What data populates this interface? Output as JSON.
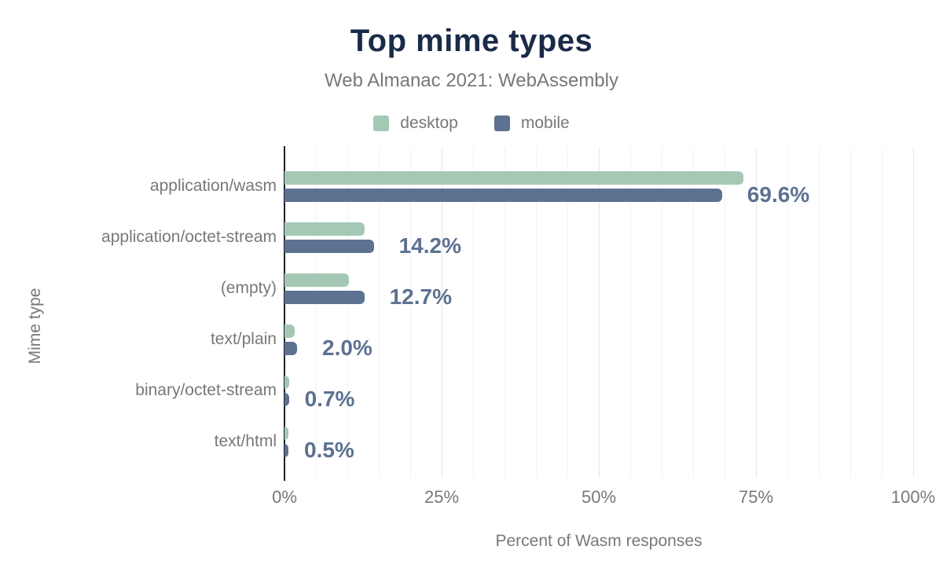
{
  "figure": {
    "title": "Top mime types",
    "subtitle": "Web Almanac 2021: WebAssembly"
  },
  "legend": {
    "items": [
      {
        "label": "desktop",
        "color": "#a4c8b3"
      },
      {
        "label": "mobile",
        "color": "#5d7191"
      }
    ]
  },
  "chart_data": {
    "type": "bar",
    "orientation": "horizontal",
    "title": "Top mime types",
    "subtitle": "Web Almanac 2021: WebAssembly",
    "xlabel": "Percent of Wasm responses",
    "ylabel": "Mime type",
    "categories": [
      "application/wasm",
      "application/octet-stream",
      "(empty)",
      "text/plain",
      "binary/octet-stream",
      "text/html"
    ],
    "series": [
      {
        "name": "desktop",
        "color": "#a4c8b3",
        "values": [
          73.0,
          12.8,
          10.3,
          1.6,
          0.8,
          0.6
        ]
      },
      {
        "name": "mobile",
        "color": "#5d7191",
        "values": [
          69.6,
          14.2,
          12.7,
          2.0,
          0.7,
          0.5
        ]
      }
    ],
    "data_labels": {
      "series": "mobile",
      "values": [
        "69.6%",
        "14.2%",
        "12.7%",
        "2.0%",
        "0.7%",
        "0.5%"
      ]
    },
    "x_ticks": [
      {
        "label": "0%",
        "value": 0
      },
      {
        "label": "25%",
        "value": 25
      },
      {
        "label": "50%",
        "value": 50
      },
      {
        "label": "75%",
        "value": 75
      },
      {
        "label": "100%",
        "value": 100
      }
    ],
    "xlim": [
      0,
      100
    ],
    "grid": {
      "show": true,
      "minor_step": 5,
      "major_step": 25
    },
    "legend_position": "top"
  },
  "colors": {
    "title": "#1a2b49",
    "muted_text": "#787878",
    "axis_line": "#202124",
    "grid_minor": "#f2f2f2",
    "grid_major": "#e6e6e6",
    "data_label": "#5d7191",
    "background": "#ffffff"
  }
}
